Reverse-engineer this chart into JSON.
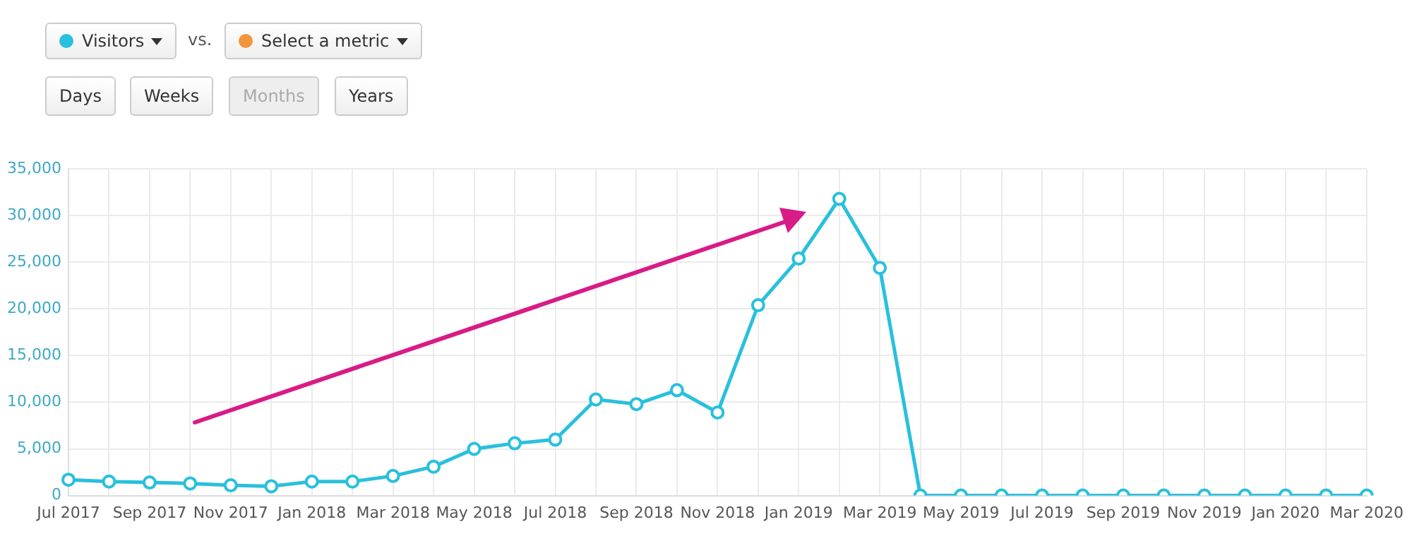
{
  "chart_data": {
    "type": "line",
    "categories": [
      "Jul 2017",
      null,
      "Sep 2017",
      null,
      "Nov 2017",
      null,
      "Jan 2018",
      null,
      "Mar 2018",
      null,
      "May 2018",
      null,
      "Jul 2018",
      null,
      "Sep 2018",
      null,
      "Nov 2018",
      null,
      "Jan 2019",
      null,
      "Mar 2019",
      null,
      "May 2019",
      null,
      "Jul 2019",
      null,
      "Sep 2019",
      null,
      "Nov 2019",
      null,
      "Jan 2020",
      null,
      "Mar 2020"
    ],
    "series": [
      {
        "name": "Visitors",
        "color": "#29c0dd",
        "values": [
          1700,
          1500,
          1400,
          1300,
          1100,
          1000,
          1500,
          1500,
          2100,
          3100,
          5000,
          5600,
          6000,
          10300,
          9800,
          11300,
          8900,
          20400,
          25400,
          31800,
          24400,
          0,
          0,
          0,
          0,
          0,
          0,
          0,
          0,
          0,
          0,
          0,
          0
        ]
      }
    ],
    "ylim": [
      0,
      35000
    ],
    "yticks": [
      0,
      {
        "value": 5000,
        "label": "5,000"
      },
      {
        "value": 10000,
        "label": "10,000"
      },
      {
        "value": 15000,
        "label": "15,000"
      },
      {
        "value": 20000,
        "label": "20,000"
      },
      {
        "value": 25000,
        "label": "25,000"
      },
      {
        "value": 30000,
        "label": "30,000"
      },
      {
        "value": 35000,
        "label": "35,000"
      }
    ],
    "grid": true,
    "legend": "top left",
    "marker": "circle",
    "line_style": "solid",
    "annotations": [
      "vs.",
      "Select a metric",
      "Days",
      "Weeks",
      "Months",
      "Years"
    ]
  }
}
